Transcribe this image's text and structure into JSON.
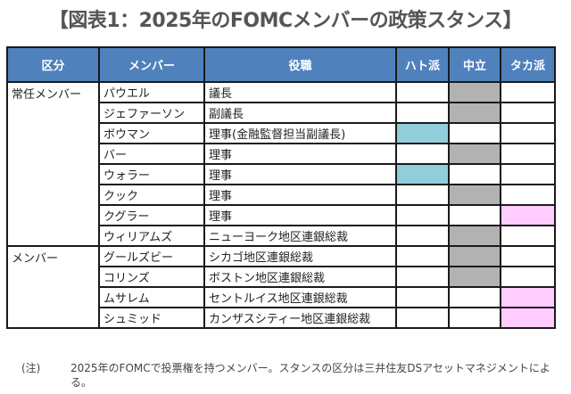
{
  "title": "【図表1：2025年のFOMCメンバーの政策スタンス】",
  "table": {
    "headers": [
      "区分",
      "メンバー",
      "役職",
      "ハト派",
      "中立",
      "タカ派"
    ],
    "groups": [
      {
        "category": "常任メンバー",
        "rowspan": 8
      },
      {
        "category": "メンバー",
        "rowspan": 4
      }
    ],
    "rows": [
      {
        "member": "パウエル",
        "role": "議長",
        "stance": "neutral"
      },
      {
        "member": "ジェファーソン",
        "role": "副議長",
        "stance": "neutral"
      },
      {
        "member": "ボウマン",
        "role": "理事(金融監督担当副議長)",
        "stance": "dove"
      },
      {
        "member": "バー",
        "role": "理事",
        "stance": "neutral"
      },
      {
        "member": "ウォラー",
        "role": "理事",
        "stance": "dove"
      },
      {
        "member": "クック",
        "role": "理事",
        "stance": "neutral"
      },
      {
        "member": "クグラー",
        "role": "理事",
        "stance": "hawk"
      },
      {
        "member": "ウィリアムズ",
        "role": "ニューヨーク地区連銀総裁",
        "stance": "neutral"
      },
      {
        "member": "グールズビー",
        "role": "シカゴ地区連銀総裁",
        "stance": "neutral"
      },
      {
        "member": "コリンズ",
        "role": "ボストン地区連銀総裁",
        "stance": "neutral"
      },
      {
        "member": "ムサレム",
        "role": "セントルイス地区連銀総裁",
        "stance": "hawk"
      },
      {
        "member": "シュミッド",
        "role": "カンザスシティー地区連銀総裁",
        "stance": "hawk"
      }
    ],
    "colors": {
      "header": "#4f81bd",
      "dove": "#92cddc",
      "neutral": "#b2b2b2",
      "hawk": "#ffccff"
    }
  },
  "note": {
    "label": "(注)",
    "text": "2025年のFOMCで投票権を持つメンバー。スタンスの区分は三井住友DSアセットマネジメントによる。"
  }
}
